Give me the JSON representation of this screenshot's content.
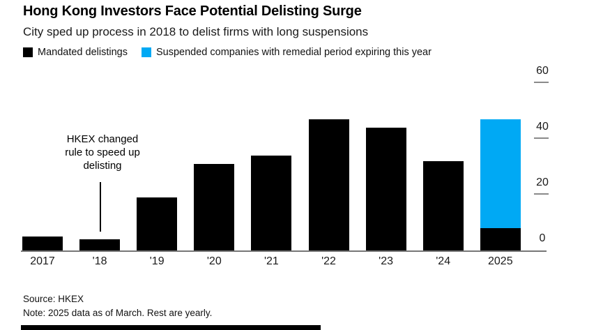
{
  "header": {
    "title": "Hong Kong Investors Face Potential Delisting Surge",
    "subtitle": "City sped up process in 2018 to delist firms with long suspensions"
  },
  "legend": {
    "items": [
      {
        "label": "Mandated delistings",
        "color": "#000000"
      },
      {
        "label": "Suspended companies with remedial period expiring this year",
        "color": "#00a9f4"
      }
    ]
  },
  "annotation": {
    "text": "HKEX changed\nrule to speed up\ndelisting"
  },
  "footer": {
    "source": "Source: HKEX",
    "note": "Note: 2025 data as of March. Rest are yearly."
  },
  "chart_data": {
    "type": "bar",
    "stacked": true,
    "categories": [
      "2017",
      "'18",
      "'19",
      "'20",
      "'21",
      "'22",
      "'23",
      "'24",
      "2025"
    ],
    "series": [
      {
        "name": "Mandated delistings",
        "color": "#000000",
        "values": [
          5,
          4,
          19,
          31,
          34,
          47,
          44,
          32,
          8
        ]
      },
      {
        "name": "Suspended companies with remedial period expiring this year",
        "color": "#00a9f4",
        "values": [
          0,
          0,
          0,
          0,
          0,
          0,
          0,
          0,
          39
        ]
      }
    ],
    "title": "Hong Kong Investors Face Potential Delisting Surge",
    "xlabel": "",
    "ylabel": "",
    "yticks": [
      0,
      20,
      40,
      60
    ],
    "ylim": [
      0,
      60
    ],
    "grid": false,
    "legend_position": "top",
    "axis_side": "right",
    "annotation": "HKEX changed rule to speed up delisting (points at 2018 bar)"
  }
}
